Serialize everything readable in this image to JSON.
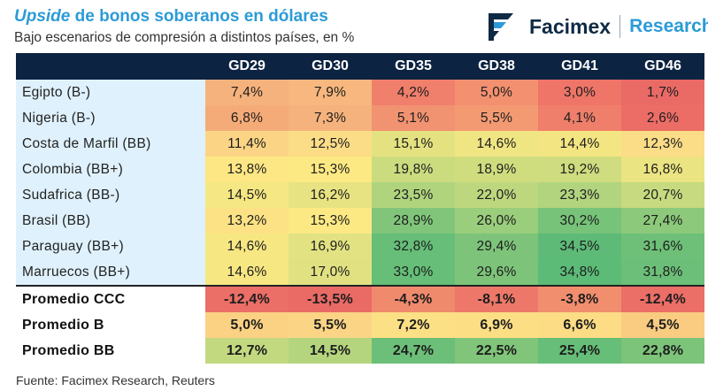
{
  "header": {
    "title_italic": "Upside",
    "title_rest": " de bonos soberanos en dólares",
    "subtitle": "Bajo escenarios de compresión a distintos países, en %"
  },
  "brand": {
    "name": "Facimex",
    "sub": "Research"
  },
  "source": "Fuente: Facimex Research, Reuters",
  "chart_data": {
    "type": "table",
    "title": "Upside de bonos soberanos en dólares",
    "subtitle": "Bajo escenarios de compresión a distintos países, en %",
    "columns": [
      "GD29",
      "GD30",
      "GD35",
      "GD38",
      "GD41",
      "GD46"
    ],
    "rows": [
      {
        "label": "Egipto (B-)",
        "values": [
          "7,4%",
          "7,9%",
          "4,2%",
          "5,0%",
          "3,0%",
          "1,7%"
        ],
        "colors": [
          "#f6b27c",
          "#f7b77e",
          "#f07f6b",
          "#f29070",
          "#ee7568",
          "#ea6a66"
        ]
      },
      {
        "label": "Nigeria (B-)",
        "values": [
          "6,8%",
          "7,3%",
          "5,1%",
          "5,5%",
          "4,1%",
          "2,6%"
        ],
        "colors": [
          "#f5ab78",
          "#f6b27c",
          "#f19271",
          "#f39a73",
          "#ef7f6b",
          "#ec6d66"
        ]
      },
      {
        "label": "Costa de Marfil (BB)",
        "values": [
          "11,4%",
          "12,5%",
          "15,1%",
          "14,6%",
          "14,4%",
          "12,3%"
        ],
        "colors": [
          "#fbd585",
          "#fcdd87",
          "#e4e280",
          "#f0e583",
          "#f4e583",
          "#fbdc87"
        ]
      },
      {
        "label": "Colombia (BB+)",
        "values": [
          "13,8%",
          "15,3%",
          "19,8%",
          "18,9%",
          "19,2%",
          "16,8%"
        ],
        "colors": [
          "#fde784",
          "#fde983",
          "#cbdc7f",
          "#d0dd7f",
          "#cfdc7f",
          "#ebe482"
        ]
      },
      {
        "label": "Sudafrica (BB-)",
        "values": [
          "14,5%",
          "16,2%",
          "23,5%",
          "22,0%",
          "23,3%",
          "20,7%"
        ],
        "colors": [
          "#f5e783",
          "#e7e382",
          "#b0d47e",
          "#bdd77f",
          "#b2d47e",
          "#c7da80"
        ]
      },
      {
        "label": "Brasil (BB)",
        "values": [
          "13,2%",
          "15,3%",
          "28,9%",
          "26,0%",
          "30,2%",
          "27,4%"
        ],
        "colors": [
          "#fde285",
          "#fde983",
          "#80c57a",
          "#9acd7c",
          "#77c379",
          "#8cc97b"
        ]
      },
      {
        "label": "Paraguay (BB+)",
        "values": [
          "14,6%",
          "16,9%",
          "32,8%",
          "29,4%",
          "34,5%",
          "31,6%"
        ],
        "colors": [
          "#f7e783",
          "#e2e282",
          "#66be78",
          "#7dc47a",
          "#5ebb77",
          "#6ec078"
        ]
      },
      {
        "label": "Marruecos (BB+)",
        "values": [
          "14,6%",
          "17,0%",
          "33,0%",
          "29,6%",
          "34,8%",
          "31,8%"
        ],
        "colors": [
          "#f7e783",
          "#e1e182",
          "#66be78",
          "#7dc47a",
          "#5cbb77",
          "#6cbf78"
        ]
      },
      {
        "label": "Promedio CCC",
        "values": [
          "-12,4%",
          "-13,5%",
          "-4,3%",
          "-8,1%",
          "-3,8%",
          "-12,4%"
        ],
        "colors": [
          "#eb6e67",
          "#ea6a66",
          "#f08a6d",
          "#ed7869",
          "#f18e6e",
          "#eb6e67"
        ],
        "bold": true
      },
      {
        "label": "Promedio B",
        "values": [
          "5,0%",
          "5,5%",
          "7,2%",
          "6,9%",
          "6,6%",
          "4,5%"
        ],
        "colors": [
          "#fbd283",
          "#fbd585",
          "#fce085",
          "#fcde85",
          "#fcdc85",
          "#f9cc81"
        ],
        "bold": true
      },
      {
        "label": "Promedio BB",
        "values": [
          "12,7%",
          "14,5%",
          "24,7%",
          "22,5%",
          "25,4%",
          "22,8%"
        ],
        "colors": [
          "#c3d97f",
          "#b4d57e",
          "#6cbf78",
          "#80c57a",
          "#66be78",
          "#7cc47a"
        ],
        "bold": true
      }
    ]
  }
}
